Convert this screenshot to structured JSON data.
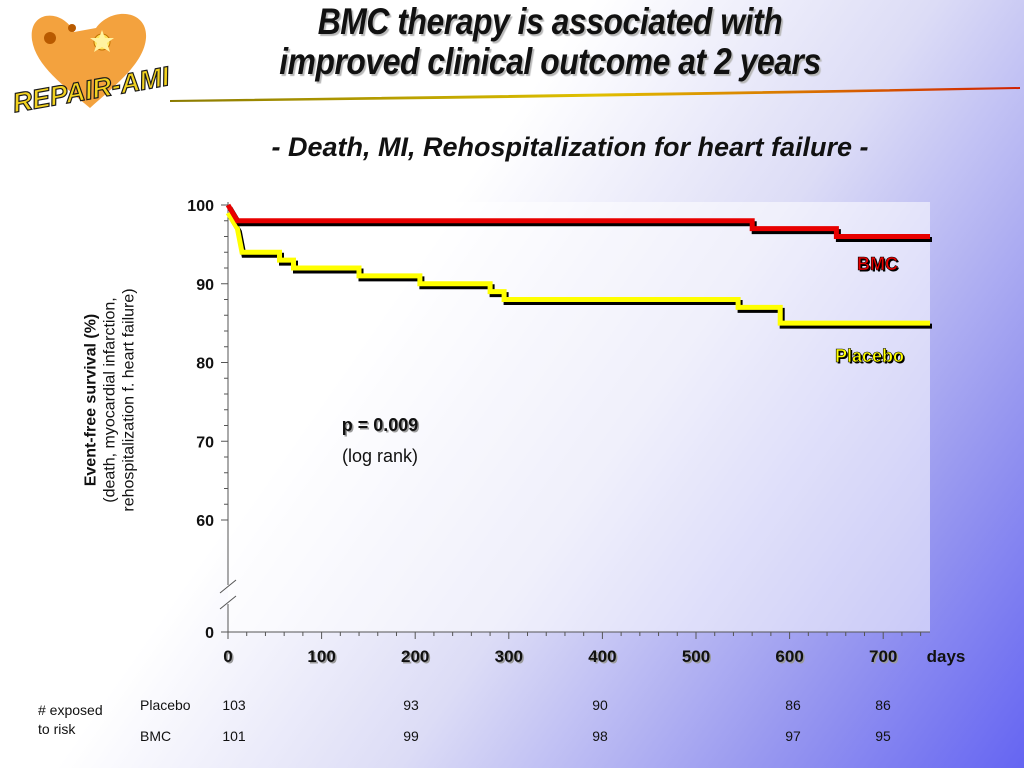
{
  "logo": {
    "text": "REPAIR-AMI"
  },
  "title": {
    "line1": "BMC therapy is associated with",
    "line2": "improved clinical outcome at 2 years"
  },
  "subtitle": "- Death, MI, Rehospitalization for heart failure -",
  "colors": {
    "bmc": "#e80000",
    "placebo": "#ffff00",
    "shadow": "#000000"
  },
  "chart_data": {
    "type": "line",
    "title": "",
    "xlabel": "days",
    "ylabel": [
      "Event-free survival (%)",
      "(death, myocardial infarction,",
      "rehospitalization f. heart failure)"
    ],
    "xlim": [
      0,
      750
    ],
    "ylim": [
      55,
      100
    ],
    "y_axis_break": true,
    "xticks": [
      0,
      100,
      200,
      300,
      400,
      500,
      600,
      700
    ],
    "yticks": [
      100,
      90,
      80,
      70,
      60,
      0
    ],
    "grid": false,
    "series": [
      {
        "name": "BMC",
        "step": true,
        "points": [
          [
            0,
            100
          ],
          [
            5,
            99
          ],
          [
            10,
            98
          ],
          [
            560,
            98
          ],
          [
            560,
            97
          ],
          [
            650,
            97
          ],
          [
            650,
            96
          ],
          [
            750,
            96
          ]
        ]
      },
      {
        "name": "Placebo",
        "step": true,
        "points": [
          [
            0,
            99
          ],
          [
            10,
            97
          ],
          [
            15,
            94
          ],
          [
            55,
            94
          ],
          [
            55,
            93
          ],
          [
            70,
            93
          ],
          [
            70,
            92
          ],
          [
            140,
            92
          ],
          [
            140,
            91
          ],
          [
            205,
            91
          ],
          [
            205,
            90
          ],
          [
            280,
            90
          ],
          [
            280,
            89
          ],
          [
            295,
            89
          ],
          [
            295,
            88
          ],
          [
            545,
            88
          ],
          [
            545,
            87
          ],
          [
            590,
            87
          ],
          [
            590,
            85
          ],
          [
            750,
            85
          ]
        ]
      }
    ],
    "annotations": {
      "p_value": "p = 0.009",
      "test": "(log rank)"
    }
  },
  "risk_table": {
    "title_line1": "# exposed",
    "title_line2": "to risk",
    "rows": [
      {
        "label": "Placebo",
        "values": [
          "103",
          "93",
          "90",
          "86",
          "86"
        ]
      },
      {
        "label": "BMC",
        "values": [
          "101",
          "99",
          "98",
          "97",
          "95"
        ]
      }
    ]
  }
}
